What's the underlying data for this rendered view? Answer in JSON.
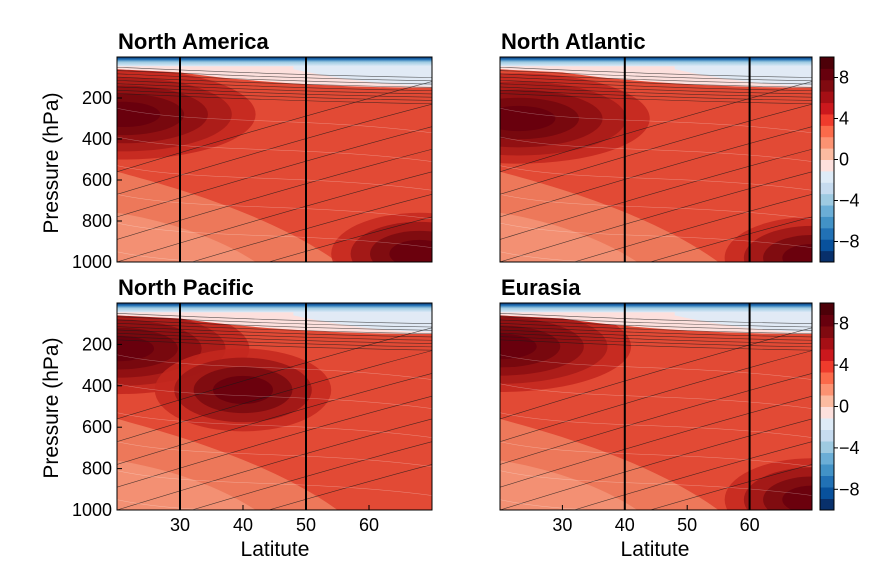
{
  "chart_data": {
    "type": "heatmap",
    "x_label": "Latitute",
    "y_label": "Pressure (hPa)",
    "x_range": [
      20,
      70
    ],
    "y_range": [
      0,
      1000
    ],
    "y_ticks": [
      200,
      400,
      600,
      800,
      1000
    ],
    "x_ticks": [
      30,
      40,
      50,
      60
    ],
    "colorbar_ticks": [
      8,
      4,
      0,
      -4,
      -8
    ],
    "colorbar_range": [
      -10,
      10
    ],
    "panels": [
      {
        "title": "North America",
        "vlines": [
          30,
          50
        ],
        "core_lat": 21,
        "core_p": 280,
        "core_val": 9.5,
        "warm_blob": {
          "lat": 68,
          "p": 960,
          "val": 9.5
        }
      },
      {
        "title": "North Atlantic",
        "vlines": [
          40,
          60
        ],
        "core_lat": 23,
        "core_p": 300,
        "core_val": 9.5,
        "warm_blob": {
          "lat": 70,
          "p": 980,
          "val": 7.5
        }
      },
      {
        "title": "North Pacific",
        "vlines": [
          30,
          50
        ],
        "core_lat": 20,
        "core_p": 220,
        "core_val": 9.5,
        "warm_blob": {
          "lat": 40,
          "p": 420,
          "val": 7.5
        }
      },
      {
        "title": "Eurasia",
        "vlines": [
          40,
          60
        ],
        "core_lat": 20,
        "core_p": 210,
        "core_val": 9.5,
        "warm_blob": {
          "lat": 70,
          "p": 950,
          "val": 9.0
        }
      }
    ]
  },
  "colors": {
    "dark_red": "#67000d",
    "mid_red": "#e34a33",
    "light": "#fde0dd",
    "light_blue": "#deebf7",
    "dark_blue": "#08306b"
  }
}
